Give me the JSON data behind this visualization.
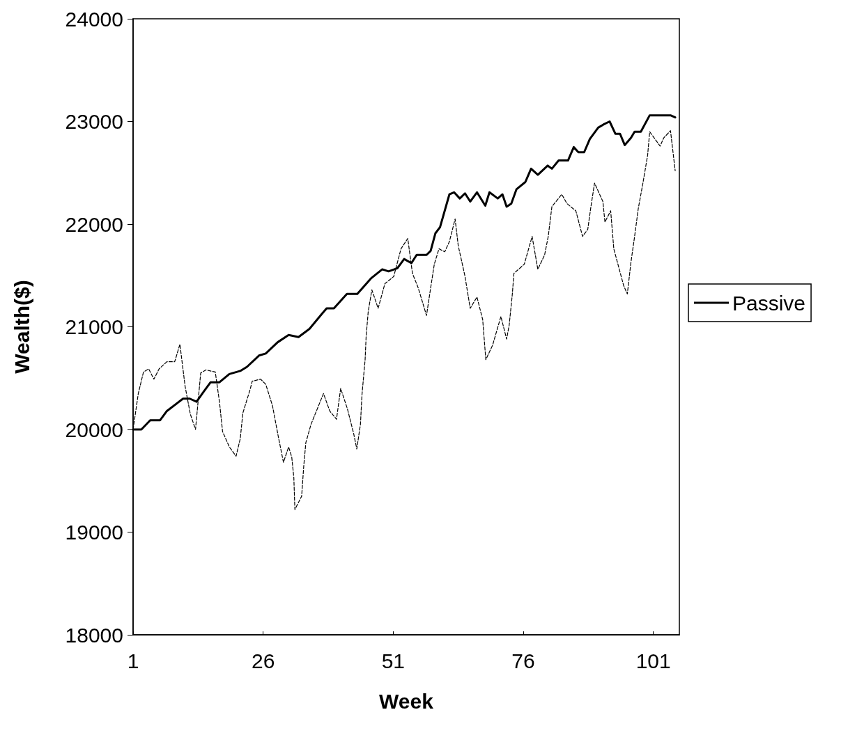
{
  "chart_data": {
    "type": "line",
    "xlabel": "Week",
    "ylabel": "Wealth($)",
    "xlim": [
      1,
      106
    ],
    "xticks": [
      1,
      26,
      51,
      76,
      101
    ],
    "ylim": [
      18000,
      24000
    ],
    "yticks": [
      18000,
      19000,
      20000,
      21000,
      22000,
      23000,
      24000
    ],
    "legend": "right",
    "marker": "none",
    "series": [
      {
        "name": "Passive",
        "color": "#000000",
        "line_style": "solid",
        "x": [
          1,
          2.6,
          4.3,
          6.2,
          7.5,
          10.6,
          11.9,
          13.2,
          14.6,
          15.9,
          17.6,
          19.5,
          21.6,
          22.9,
          25.2,
          26.5,
          28.8,
          30.9,
          32.8,
          34.9,
          37.2,
          38.2,
          39.6,
          42.1,
          44.1,
          46.7,
          48.9,
          50.1,
          51.8,
          53.1,
          54.5,
          55.5,
          57.4,
          58.2,
          59.1,
          60,
          61.8,
          62.7,
          63.8,
          64.8,
          65.8,
          67.1,
          68.7,
          69.5,
          71.1,
          72,
          72.8,
          73.7,
          74.7,
          76.4,
          77.5,
          78.8,
          80.7,
          81.5,
          82.8,
          84.6,
          85.7,
          86.6,
          87.7,
          88.8,
          90.4,
          91.4,
          92.6,
          93.7,
          94.6,
          95.5,
          96.7,
          97.4,
          98.6,
          100.3,
          102.6,
          104.3,
          105.2
        ],
        "values": [
          20000,
          20000,
          20090,
          20090,
          20180,
          20300,
          20300,
          20270,
          20370,
          20460,
          20460,
          20540,
          20570,
          20610,
          20720,
          20740,
          20850,
          20920,
          20900,
          20980,
          21120,
          21180,
          21180,
          21320,
          21320,
          21470,
          21560,
          21540,
          21570,
          21660,
          21620,
          21700,
          21700,
          21740,
          21910,
          21970,
          22290,
          22310,
          22250,
          22300,
          22220,
          22310,
          22180,
          22310,
          22250,
          22290,
          22170,
          22200,
          22340,
          22410,
          22540,
          22480,
          22570,
          22540,
          22620,
          22620,
          22750,
          22700,
          22700,
          22830,
          22940,
          22970,
          23000,
          22880,
          22880,
          22770,
          22840,
          22900,
          22900,
          23060,
          23060,
          23060,
          23040
        ]
      },
      {
        "color": "#000000",
        "line_style": "dashed",
        "x": [
          1,
          2,
          3,
          4,
          5,
          6,
          7.5,
          9,
          10,
          11,
          12,
          13,
          14,
          15,
          16.8,
          17.6,
          18.2,
          19.5,
          20.8,
          21.6,
          22.1,
          23.5,
          23.9,
          25.5,
          26.5,
          27.8,
          28.8,
          29.9,
          30.9,
          31.5,
          31.9,
          32.1,
          33.4,
          33.8,
          34.2,
          35.2,
          36.8,
          37.6,
          38.8,
          40.1,
          40.9,
          42.2,
          43.4,
          44,
          44.7,
          45,
          45.6,
          45.8,
          46.2,
          46.9,
          48.1,
          49.4,
          51.1,
          52.5,
          53.8,
          54.7,
          55.8,
          57.4,
          58.2,
          58.9,
          59.8,
          60.9,
          61.8,
          62.5,
          62.9,
          63.5,
          64.2,
          64.8,
          65.8,
          67.1,
          68.2,
          68.8,
          70.1,
          71.7,
          72.8,
          73.3,
          73.9,
          74.2,
          76.2,
          77.7,
          78.8,
          80.1,
          80.8,
          81.5,
          83.4,
          84.4,
          86.1,
          87.4,
          88.4,
          89,
          89.7,
          91.3,
          91.7,
          92.8,
          93.4,
          95.3,
          96,
          96.7,
          97.4,
          98.1,
          99,
          99.9,
          100.3,
          101.3,
          102.3,
          103,
          104.3,
          105.2
        ],
        "values": [
          20000,
          20350,
          20560,
          20590,
          20490,
          20590,
          20660,
          20660,
          20830,
          20420,
          20150,
          20000,
          20550,
          20580,
          20560,
          20270,
          19980,
          19830,
          19740,
          19910,
          20160,
          20390,
          20470,
          20490,
          20440,
          20230,
          19960,
          19680,
          19830,
          19730,
          19530,
          19220,
          19350,
          19640,
          19870,
          20050,
          20250,
          20350,
          20180,
          20100,
          20400,
          20200,
          19960,
          19810,
          20050,
          20340,
          20680,
          20910,
          21150,
          21360,
          21180,
          21420,
          21490,
          21760,
          21860,
          21520,
          21380,
          21110,
          21380,
          21610,
          21760,
          21730,
          21830,
          21970,
          22050,
          21790,
          21630,
          21490,
          21180,
          21290,
          21070,
          20680,
          20820,
          21100,
          20880,
          21020,
          21320,
          21520,
          21610,
          21880,
          21560,
          21700,
          21880,
          22170,
          22290,
          22200,
          22130,
          21880,
          21950,
          22170,
          22400,
          22220,
          22020,
          22130,
          21760,
          21400,
          21320,
          21630,
          21880,
          22150,
          22400,
          22670,
          22900,
          22830,
          22760,
          22840,
          22910,
          22520
        ]
      }
    ]
  }
}
